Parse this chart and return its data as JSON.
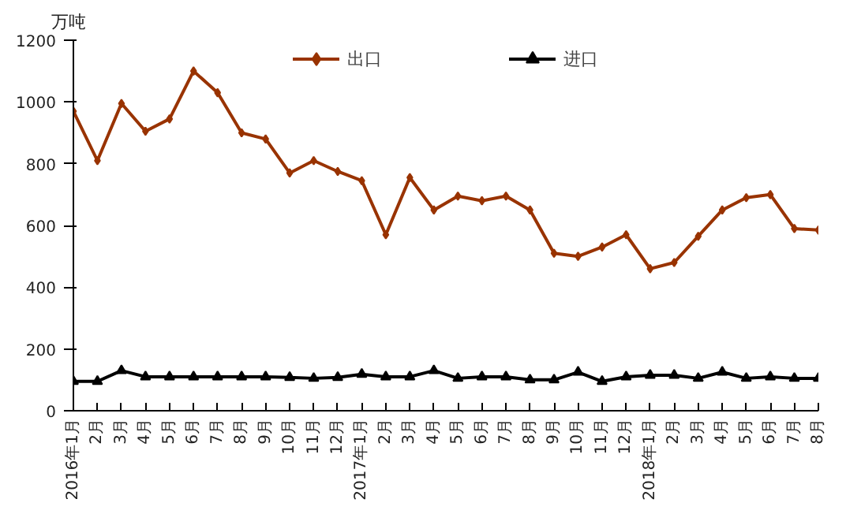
{
  "chart_data": {
    "type": "line",
    "ylabel": "万吨",
    "categories": [
      "2016年1月",
      "2月",
      "3月",
      "4月",
      "5月",
      "6月",
      "7月",
      "8月",
      "9月",
      "10月",
      "11月",
      "12月",
      "2017年1月",
      "2月",
      "3月",
      "4月",
      "5月",
      "6月",
      "7月",
      "8月",
      "9月",
      "10月",
      "11月",
      "12月",
      "2018年1月",
      "2月",
      "3月",
      "4月",
      "5月",
      "6月",
      "7月",
      "8月"
    ],
    "series": [
      {
        "name": "出口",
        "color": "#993300",
        "marker": "diamond",
        "values": [
          970,
          810,
          995,
          905,
          945,
          1100,
          1030,
          900,
          880,
          770,
          810,
          775,
          745,
          570,
          755,
          650,
          695,
          680,
          695,
          650,
          510,
          500,
          530,
          570,
          460,
          480,
          565,
          650,
          690,
          700,
          590,
          585
        ]
      },
      {
        "name": "进口",
        "color": "#000000",
        "marker": "triangle",
        "values": [
          95,
          95,
          130,
          110,
          110,
          110,
          110,
          110,
          110,
          108,
          105,
          108,
          118,
          110,
          110,
          130,
          105,
          110,
          110,
          100,
          100,
          125,
          95,
          110,
          115,
          115,
          105,
          125,
          105,
          110,
          105,
          105
        ]
      }
    ],
    "ylim": [
      0,
      1200
    ],
    "yticks": [
      0,
      200,
      400,
      600,
      800,
      1000,
      1200
    ],
    "grid": false,
    "legend": "top",
    "line_style": "solid"
  }
}
